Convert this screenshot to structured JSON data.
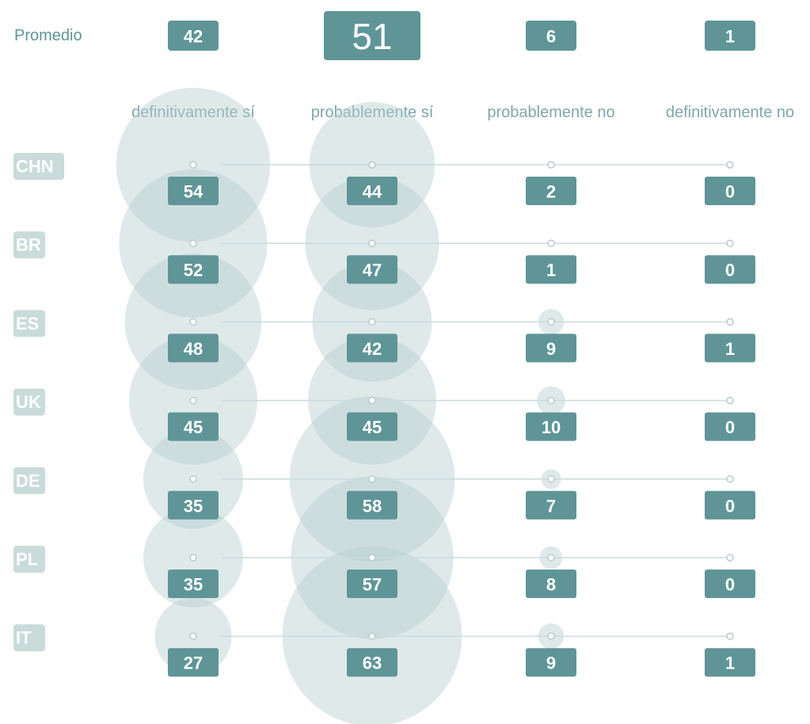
{
  "chart_data": {
    "type": "bubble",
    "average_label": "Promedio",
    "averages": [
      42,
      51,
      6,
      1
    ],
    "columns": [
      "definitivamente sí",
      "probablemente sí",
      "probablemente no",
      "definitivamente no"
    ],
    "series": [
      {
        "name": "CHN",
        "values": [
          54,
          44,
          2,
          0
        ]
      },
      {
        "name": "BR",
        "values": [
          52,
          47,
          1,
          0
        ]
      },
      {
        "name": "ES",
        "values": [
          48,
          42,
          9,
          1
        ]
      },
      {
        "name": "UK",
        "values": [
          45,
          45,
          10,
          0
        ]
      },
      {
        "name": "DE",
        "values": [
          35,
          58,
          7,
          0
        ]
      },
      {
        "name": "PL",
        "values": [
          35,
          57,
          8,
          0
        ]
      },
      {
        "name": "IT",
        "values": [
          27,
          63,
          9,
          1
        ]
      }
    ],
    "color": "#5f9597",
    "bubble_color": "#b9cfd0"
  }
}
